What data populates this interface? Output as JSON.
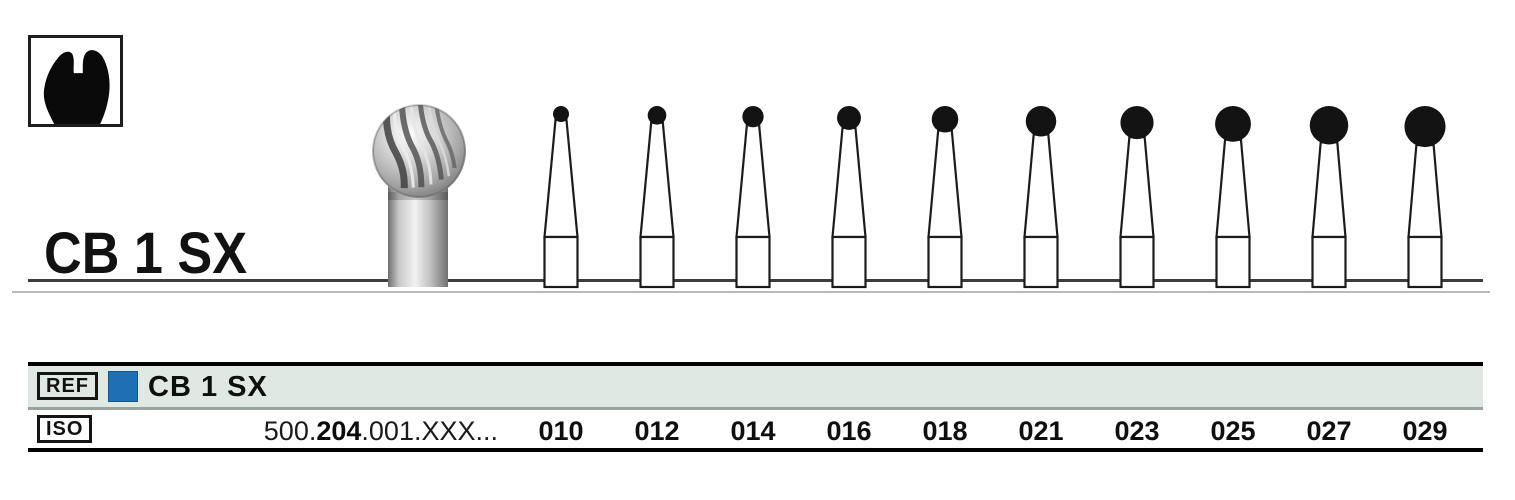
{
  "icon_box": {
    "icon": "molar-tooth"
  },
  "title_block": {
    "product_code": "CB 1 SX"
  },
  "table": {
    "ref_row": {
      "tag": "REF",
      "product_code": "CB 1 SX"
    },
    "iso_row": {
      "tag": "ISO",
      "code_prefix": "500.",
      "code_shank_bold": "204",
      "code_suffix": ".001.XXX...",
      "sizes": [
        "010",
        "012",
        "014",
        "016",
        "018",
        "021",
        "023",
        "025",
        "027",
        "029"
      ]
    }
  },
  "colors": {
    "accent_blue": "#1f70b2",
    "ref_row_bg": "#dfe8e2",
    "row_separator": "#9aa29c",
    "line_art": "#1c1c1c"
  }
}
